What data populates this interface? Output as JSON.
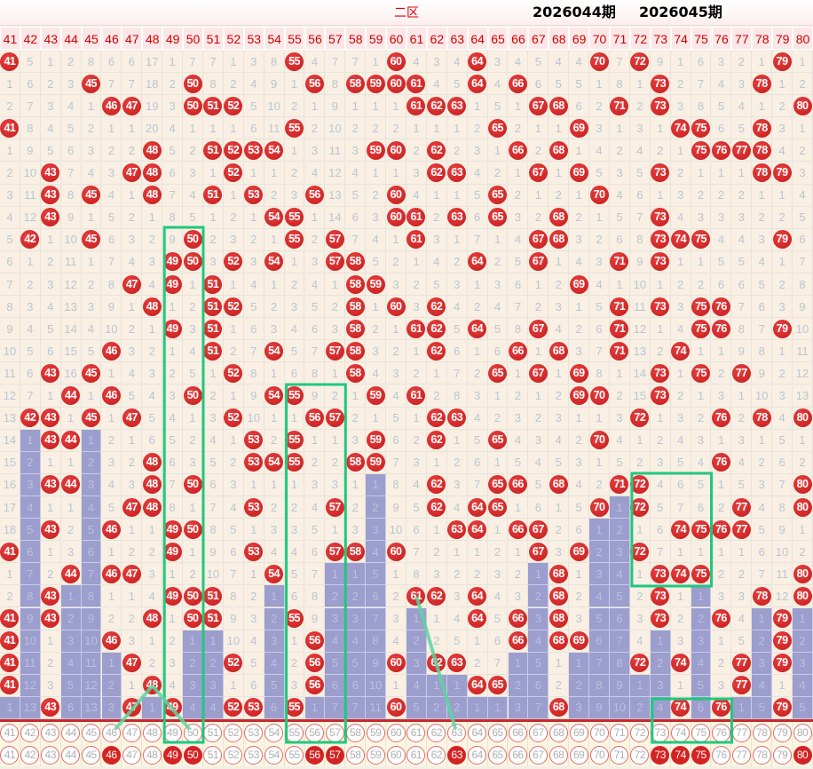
{
  "title": "二区",
  "columns": [
    41,
    42,
    43,
    44,
    45,
    46,
    47,
    48,
    49,
    50,
    51,
    52,
    53,
    54,
    55,
    56,
    57,
    58,
    59,
    60,
    61,
    62,
    63,
    64,
    65,
    66,
    67,
    68,
    69,
    70,
    71,
    72,
    73,
    74,
    75,
    76,
    77,
    78,
    79,
    80
  ],
  "rows": [
    [
      41,
      5,
      1,
      2,
      8,
      6,
      6,
      17,
      1,
      7,
      7,
      1,
      3,
      8,
      55,
      4,
      7,
      7,
      1,
      60,
      4,
      3,
      4,
      64,
      3,
      4,
      5,
      4,
      4,
      70,
      7,
      72,
      9,
      1,
      6,
      3,
      2,
      1,
      79,
      1
    ],
    [
      1,
      6,
      2,
      3,
      45,
      7,
      7,
      18,
      2,
      50,
      8,
      2,
      4,
      9,
      1,
      56,
      8,
      58,
      59,
      60,
      61,
      4,
      5,
      64,
      4,
      66,
      6,
      5,
      5,
      1,
      8,
      1,
      73,
      2,
      7,
      4,
      3,
      78,
      1,
      2
    ],
    [
      2,
      7,
      3,
      4,
      1,
      46,
      47,
      19,
      3,
      50,
      51,
      52,
      5,
      10,
      2,
      1,
      9,
      1,
      1,
      1,
      61,
      62,
      63,
      1,
      5,
      1,
      67,
      68,
      6,
      2,
      71,
      2,
      73,
      3,
      8,
      5,
      4,
      1,
      2,
      80
    ],
    [
      41,
      8,
      4,
      5,
      2,
      1,
      1,
      20,
      4,
      1,
      1,
      1,
      6,
      11,
      55,
      2,
      10,
      2,
      2,
      2,
      1,
      1,
      1,
      2,
      65,
      2,
      1,
      1,
      69,
      3,
      1,
      3,
      1,
      74,
      75,
      6,
      5,
      78,
      3,
      1
    ],
    [
      1,
      9,
      5,
      6,
      3,
      2,
      2,
      48,
      5,
      2,
      51,
      52,
      53,
      54,
      1,
      3,
      11,
      3,
      59,
      60,
      2,
      62,
      2,
      3,
      1,
      66,
      2,
      68,
      1,
      4,
      2,
      4,
      2,
      1,
      75,
      76,
      77,
      78,
      4,
      2
    ],
    [
      2,
      10,
      43,
      7,
      4,
      3,
      47,
      48,
      6,
      3,
      1,
      52,
      1,
      1,
      2,
      4,
      12,
      4,
      1,
      1,
      3,
      62,
      63,
      4,
      2,
      1,
      67,
      1,
      69,
      5,
      3,
      5,
      73,
      2,
      1,
      1,
      1,
      78,
      79,
      3
    ],
    [
      3,
      11,
      43,
      8,
      45,
      4,
      1,
      48,
      7,
      4,
      51,
      1,
      53,
      2,
      3,
      56,
      13,
      5,
      2,
      60,
      4,
      1,
      1,
      5,
      65,
      2,
      1,
      2,
      1,
      70,
      4,
      6,
      1,
      3,
      2,
      2,
      2,
      1,
      1,
      4
    ],
    [
      4,
      12,
      43,
      9,
      1,
      5,
      2,
      1,
      8,
      5,
      1,
      2,
      1,
      54,
      55,
      1,
      14,
      6,
      3,
      60,
      61,
      2,
      63,
      6,
      65,
      3,
      2,
      68,
      2,
      1,
      5,
      7,
      73,
      4,
      3,
      3,
      3,
      2,
      2,
      5
    ],
    [
      5,
      42,
      1,
      10,
      45,
      6,
      3,
      2,
      9,
      50,
      2,
      3,
      2,
      1,
      55,
      2,
      57,
      7,
      4,
      1,
      61,
      3,
      1,
      7,
      1,
      4,
      67,
      68,
      3,
      2,
      6,
      8,
      73,
      74,
      75,
      4,
      4,
      3,
      79,
      6
    ],
    [
      6,
      1,
      2,
      11,
      1,
      7,
      4,
      3,
      49,
      50,
      3,
      52,
      3,
      54,
      1,
      3,
      57,
      58,
      5,
      2,
      1,
      4,
      2,
      64,
      2,
      5,
      67,
      1,
      4,
      3,
      71,
      9,
      73,
      1,
      1,
      5,
      5,
      4,
      1,
      7
    ],
    [
      7,
      2,
      3,
      12,
      2,
      8,
      47,
      4,
      49,
      1,
      51,
      1,
      4,
      1,
      2,
      4,
      1,
      58,
      59,
      3,
      2,
      5,
      3,
      1,
      3,
      6,
      1,
      2,
      69,
      4,
      1,
      10,
      1,
      2,
      2,
      6,
      6,
      5,
      2,
      8
    ],
    [
      8,
      3,
      4,
      13,
      3,
      9,
      1,
      48,
      1,
      2,
      51,
      52,
      5,
      2,
      3,
      5,
      2,
      58,
      1,
      60,
      3,
      62,
      4,
      2,
      4,
      7,
      2,
      3,
      1,
      5,
      71,
      11,
      73,
      3,
      75,
      76,
      7,
      6,
      3,
      9
    ],
    [
      9,
      4,
      5,
      14,
      4,
      10,
      2,
      1,
      49,
      3,
      51,
      1,
      6,
      3,
      4,
      6,
      3,
      58,
      2,
      1,
      61,
      62,
      5,
      64,
      5,
      8,
      67,
      4,
      2,
      6,
      71,
      12,
      1,
      4,
      75,
      76,
      8,
      7,
      79,
      10
    ],
    [
      10,
      5,
      6,
      15,
      5,
      46,
      3,
      2,
      1,
      4,
      51,
      2,
      7,
      54,
      5,
      7,
      57,
      58,
      3,
      2,
      1,
      62,
      6,
      1,
      6,
      66,
      1,
      68,
      3,
      7,
      71,
      13,
      2,
      74,
      1,
      1,
      9,
      8,
      1,
      11
    ],
    [
      11,
      6,
      43,
      16,
      45,
      1,
      4,
      3,
      2,
      5,
      1,
      52,
      8,
      1,
      6,
      8,
      1,
      58,
      4,
      3,
      2,
      1,
      7,
      2,
      65,
      1,
      67,
      1,
      69,
      8,
      1,
      14,
      73,
      1,
      75,
      2,
      77,
      9,
      2,
      12
    ],
    [
      12,
      7,
      1,
      44,
      1,
      46,
      5,
      4,
      3,
      50,
      2,
      1,
      9,
      54,
      55,
      9,
      2,
      1,
      59,
      4,
      61,
      2,
      8,
      3,
      1,
      2,
      1,
      2,
      69,
      70,
      2,
      15,
      73,
      2,
      1,
      3,
      1,
      10,
      3,
      13
    ],
    [
      13,
      42,
      43,
      1,
      45,
      1,
      47,
      5,
      4,
      1,
      3,
      52,
      10,
      1,
      1,
      56,
      57,
      2,
      1,
      5,
      1,
      62,
      63,
      4,
      2,
      3,
      2,
      3,
      1,
      1,
      3,
      72,
      1,
      3,
      2,
      76,
      2,
      78,
      4,
      80
    ],
    [
      14,
      1,
      43,
      44,
      1,
      2,
      1,
      6,
      5,
      2,
      4,
      1,
      53,
      2,
      55,
      1,
      1,
      3,
      59,
      6,
      2,
      62,
      1,
      5,
      65,
      4,
      3,
      4,
      2,
      70,
      4,
      1,
      2,
      4,
      3,
      1,
      3,
      1,
      5,
      1
    ],
    [
      15,
      2,
      1,
      1,
      2,
      3,
      2,
      48,
      6,
      3,
      5,
      2,
      53,
      54,
      55,
      2,
      2,
      58,
      59,
      7,
      3,
      1,
      2,
      6,
      1,
      5,
      4,
      5,
      3,
      1,
      5,
      2,
      3,
      5,
      4,
      76,
      4,
      2,
      6,
      2
    ],
    [
      16,
      3,
      43,
      44,
      3,
      4,
      3,
      48,
      7,
      50,
      6,
      3,
      1,
      1,
      1,
      3,
      3,
      1,
      1,
      8,
      4,
      62,
      3,
      7,
      65,
      66,
      5,
      68,
      4,
      2,
      71,
      72,
      4,
      6,
      5,
      1,
      5,
      3,
      7,
      80
    ],
    [
      17,
      4,
      1,
      1,
      4,
      5,
      47,
      48,
      8,
      1,
      7,
      4,
      53,
      2,
      2,
      4,
      57,
      2,
      2,
      9,
      5,
      62,
      4,
      64,
      65,
      1,
      6,
      1,
      5,
      70,
      1,
      72,
      5,
      7,
      6,
      2,
      77,
      4,
      8,
      80
    ],
    [
      18,
      5,
      43,
      2,
      5,
      46,
      1,
      1,
      49,
      50,
      8,
      5,
      1,
      3,
      3,
      5,
      1,
      3,
      3,
      10,
      6,
      1,
      63,
      64,
      1,
      66,
      67,
      2,
      6,
      1,
      2,
      1,
      6,
      74,
      75,
      76,
      77,
      5,
      9,
      1
    ],
    [
      41,
      6,
      1,
      3,
      6,
      1,
      2,
      2,
      49,
      1,
      9,
      6,
      53,
      4,
      4,
      6,
      57,
      58,
      4,
      60,
      7,
      2,
      1,
      1,
      2,
      1,
      67,
      3,
      69,
      2,
      3,
      72,
      7,
      1,
      1,
      1,
      1,
      6,
      10,
      2
    ],
    [
      1,
      7,
      2,
      44,
      7,
      46,
      47,
      3,
      1,
      2,
      10,
      7,
      1,
      54,
      5,
      7,
      1,
      1,
      5,
      1,
      8,
      3,
      2,
      2,
      3,
      2,
      1,
      68,
      1,
      3,
      4,
      1,
      73,
      74,
      75,
      2,
      2,
      7,
      11,
      80
    ],
    [
      2,
      8,
      43,
      1,
      8,
      1,
      1,
      4,
      49,
      50,
      51,
      8,
      2,
      1,
      6,
      8,
      2,
      2,
      6,
      2,
      61,
      62,
      3,
      64,
      4,
      3,
      2,
      68,
      2,
      4,
      5,
      2,
      73,
      1,
      1,
      3,
      3,
      78,
      12,
      80
    ],
    [
      41,
      9,
      43,
      2,
      9,
      2,
      2,
      48,
      1,
      50,
      51,
      9,
      3,
      2,
      55,
      9,
      3,
      3,
      7,
      3,
      1,
      1,
      4,
      64,
      5,
      66,
      3,
      68,
      3,
      5,
      6,
      3,
      73,
      2,
      2,
      76,
      4,
      1,
      79,
      1
    ],
    [
      41,
      10,
      1,
      3,
      10,
      46,
      3,
      1,
      2,
      1,
      1,
      10,
      4,
      3,
      1,
      56,
      4,
      4,
      8,
      4,
      2,
      2,
      5,
      1,
      6,
      66,
      4,
      68,
      69,
      6,
      7,
      4,
      1,
      3,
      3,
      1,
      5,
      2,
      79,
      2
    ],
    [
      41,
      11,
      2,
      4,
      11,
      1,
      47,
      2,
      3,
      2,
      2,
      52,
      5,
      4,
      2,
      56,
      5,
      5,
      9,
      60,
      3,
      62,
      63,
      2,
      7,
      1,
      5,
      1,
      1,
      7,
      8,
      72,
      2,
      74,
      4,
      2,
      77,
      3,
      79,
      3
    ],
    [
      41,
      12,
      3,
      5,
      12,
      2,
      1,
      48,
      4,
      3,
      3,
      1,
      6,
      5,
      3,
      56,
      6,
      6,
      10,
      1,
      4,
      1,
      1,
      64,
      65,
      2,
      6,
      2,
      2,
      8,
      9,
      1,
      3,
      1,
      5,
      3,
      77,
      4,
      1,
      4
    ],
    [
      1,
      13,
      43,
      6,
      13,
      3,
      47,
      1,
      49,
      4,
      4,
      52,
      53,
      6,
      55,
      1,
      7,
      7,
      11,
      60,
      5,
      2,
      2,
      1,
      1,
      3,
      7,
      68,
      3,
      9,
      10,
      2,
      4,
      74,
      6,
      76,
      1,
      5,
      79,
      5
    ]
  ],
  "footer_rows": [
    {
      "label": "2026044期",
      "hits": []
    },
    {
      "label": "2026045期",
      "hits": [
        46,
        49,
        50,
        56,
        57,
        63,
        73,
        74,
        75,
        80
      ]
    }
  ],
  "colors": {
    "ball": "#d42323",
    "purple": "#9c9ecd",
    "highlight": "#1fc87e",
    "header_text": "#d00000"
  }
}
